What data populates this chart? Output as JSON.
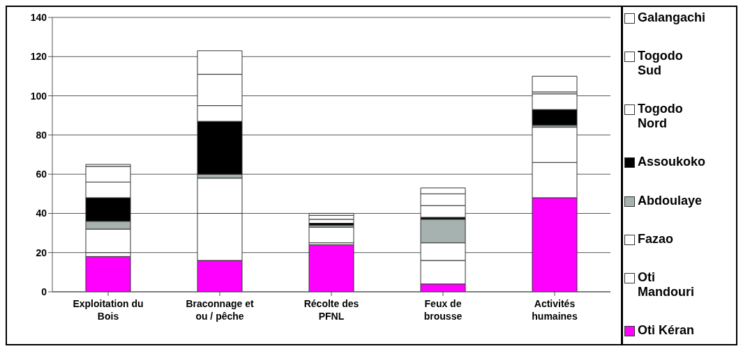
{
  "chart_data": {
    "type": "bar",
    "stacked": true,
    "categories": [
      "Exploitation du Bois",
      "Braconnage et ou / pêche",
      "Récolte des PFNL",
      "Feux de brousse",
      "Activités humaines"
    ],
    "series": [
      {
        "name": "Oti Kéran",
        "color": "#ff00ff",
        "values": [
          18,
          16,
          24,
          4,
          48
        ]
      },
      {
        "name": "Oti Mandouri",
        "color": "#ffffff",
        "values": [
          2,
          24,
          1,
          12,
          18
        ]
      },
      {
        "name": "Fazao",
        "color": "#ffffff",
        "values": [
          12,
          18,
          8,
          9,
          18
        ]
      },
      {
        "name": "Abdoulaye",
        "color": "#a6b2b0",
        "values": [
          4,
          2,
          1,
          12,
          1
        ]
      },
      {
        "name": "Assoukoko",
        "color": "#000000",
        "values": [
          12,
          27,
          1,
          1,
          8
        ]
      },
      {
        "name": "Togodo Nord",
        "color": "#ffffff",
        "values": [
          8,
          8,
          2,
          6,
          8
        ]
      },
      {
        "name": "Togodo Sud",
        "color": "#ffffff",
        "values": [
          8,
          16,
          2,
          6,
          1
        ]
      },
      {
        "name": "Galangachi",
        "color": "#ffffff",
        "values": [
          1,
          12,
          1,
          3,
          8
        ]
      }
    ],
    "ylim": [
      0,
      140
    ],
    "yticks": [
      0,
      20,
      40,
      60,
      80,
      100,
      120,
      140
    ],
    "grid": "y",
    "legend": "right"
  }
}
